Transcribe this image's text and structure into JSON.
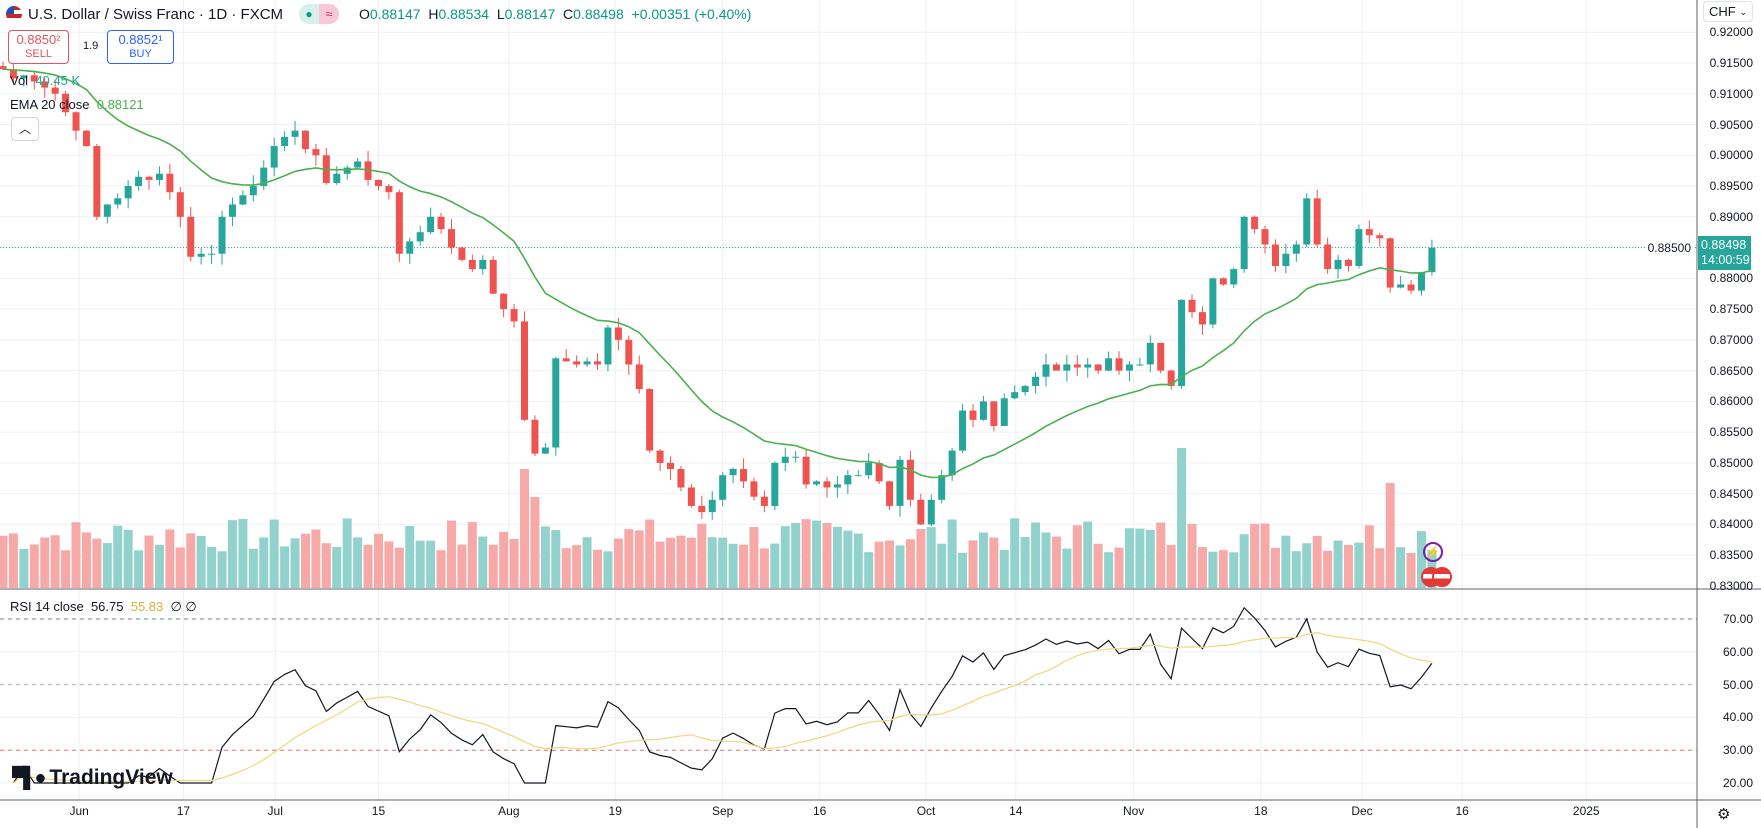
{
  "header": {
    "title": "U.S. Dollar / Swiss Franc · 1D · FXCM",
    "o_label": "O",
    "o": "0.88147",
    "h_label": "H",
    "h": "0.88534",
    "l_label": "L",
    "l": "0.88147",
    "c_label": "C",
    "c": "0.88498",
    "change": "+0.00351 (+0.40%)",
    "market_icon": "green-dot",
    "replay_icon": "≈"
  },
  "trade": {
    "sell_price": "0.8850²",
    "sell_label": "SELL",
    "spread": "1.9",
    "buy_price": "0.8852¹",
    "buy_label": "BUY"
  },
  "legend": {
    "vol_label": "Vol",
    "vol_value": "40.45 K",
    "ema_label": "EMA 20 close",
    "ema_value": "0.88121",
    "rsi_label": "RSI 14 close",
    "rsi_value": "56.75",
    "rsi_ma_value": "55.83",
    "rsi_extra": "∅ ∅"
  },
  "axis": {
    "currency": "CHF",
    "current_price": "0.88498",
    "countdown": "14:00:59"
  },
  "branding": {
    "logo": "TradingView"
  },
  "colors": {
    "up": "#26a69a",
    "down": "#ef5350",
    "up_vol": "#92d2cc",
    "down_vol": "#f7a9a7",
    "ema": "#4caf50",
    "rsi": "#131722",
    "rsi_ma": "#f0d77a",
    "grid": "#eef0f3"
  },
  "chart_data": {
    "type": "candlestick",
    "symbol": "USDCHF",
    "ylim": [
      0.83,
      0.92
    ],
    "price_ticks": [
      "0.92000",
      "0.91500",
      "0.91000",
      "0.90500",
      "0.90000",
      "0.89500",
      "0.89000",
      "0.88500",
      "0.88000",
      "0.87500",
      "0.87000",
      "0.86500",
      "0.86000",
      "0.85500",
      "0.85000",
      "0.84500",
      "0.84000",
      "0.83500",
      "0.83000"
    ],
    "rsi_ticks": [
      "70.00",
      "60.00",
      "50.00",
      "40.00",
      "30.00",
      "20.00"
    ],
    "rsi_levels": [
      70,
      50,
      30
    ],
    "x_ticks": [
      {
        "label": "Jun",
        "index": 7.3
      },
      {
        "label": "17",
        "index": 17.3
      },
      {
        "label": "Jul",
        "index": 26.1
      },
      {
        "label": "15",
        "index": 36
      },
      {
        "label": "Aug",
        "index": 48.5
      },
      {
        "label": "19",
        "index": 58.7
      },
      {
        "label": "Sep",
        "index": 69
      },
      {
        "label": "16",
        "index": 78.3
      },
      {
        "label": "Oct",
        "index": 88.5
      },
      {
        "label": "14",
        "index": 97.1
      },
      {
        "label": "Nov",
        "index": 108.4
      },
      {
        "label": "18",
        "index": 120.6
      },
      {
        "label": "Dec",
        "index": 130.3
      },
      {
        "label": "16",
        "index": 139.9
      },
      {
        "label": "2025",
        "index": 151.8
      }
    ],
    "closes": [
      0.914,
      0.9125,
      0.913,
      0.912,
      0.911,
      0.91,
      0.907,
      0.904,
      0.9015,
      0.89,
      0.892,
      0.893,
      0.895,
      0.8965,
      0.896,
      0.897,
      0.894,
      0.89,
      0.8835,
      0.884,
      0.884,
      0.89,
      0.892,
      0.8935,
      0.895,
      0.898,
      0.9015,
      0.903,
      0.904,
      0.901,
      0.9,
      0.8955,
      0.897,
      0.898,
      0.899,
      0.896,
      0.895,
      0.894,
      0.884,
      0.886,
      0.8875,
      0.89,
      0.888,
      0.885,
      0.883,
      0.8815,
      0.883,
      0.8775,
      0.875,
      0.873,
      0.857,
      0.8515,
      0.8525,
      0.867,
      0.8665,
      0.866,
      0.8665,
      0.866,
      0.872,
      0.87,
      0.866,
      0.862,
      0.852,
      0.85,
      0.849,
      0.846,
      0.843,
      0.842,
      0.844,
      0.848,
      0.849,
      0.847,
      0.8445,
      0.843,
      0.85,
      0.851,
      0.851,
      0.8465,
      0.847,
      0.846,
      0.8465,
      0.848,
      0.848,
      0.85,
      0.847,
      0.843,
      0.8505,
      0.844,
      0.84,
      0.844,
      0.848,
      0.852,
      0.8585,
      0.857,
      0.86,
      0.856,
      0.8605,
      0.8615,
      0.8625,
      0.864,
      0.866,
      0.865,
      0.866,
      0.8655,
      0.866,
      0.865,
      0.867,
      0.865,
      0.866,
      0.866,
      0.8695,
      0.865,
      0.8625,
      0.8765,
      0.8745,
      0.8725,
      0.88,
      0.879,
      0.8815,
      0.89,
      0.888,
      0.8855,
      0.882,
      0.884,
      0.8855,
      0.893,
      0.8855,
      0.8815,
      0.883,
      0.882,
      0.888,
      0.887,
      0.8865,
      0.8785,
      0.879,
      0.878,
      0.881,
      0.88498
    ],
    "volume_spikes": [
      {
        "index": 50,
        "level": 0.85
      },
      {
        "index": 51,
        "level": 0.65
      },
      {
        "index": 113,
        "level": 1.0
      },
      {
        "index": 133,
        "level": 0.75
      }
    ],
    "ema_period": 20,
    "rsi_period": 14
  }
}
